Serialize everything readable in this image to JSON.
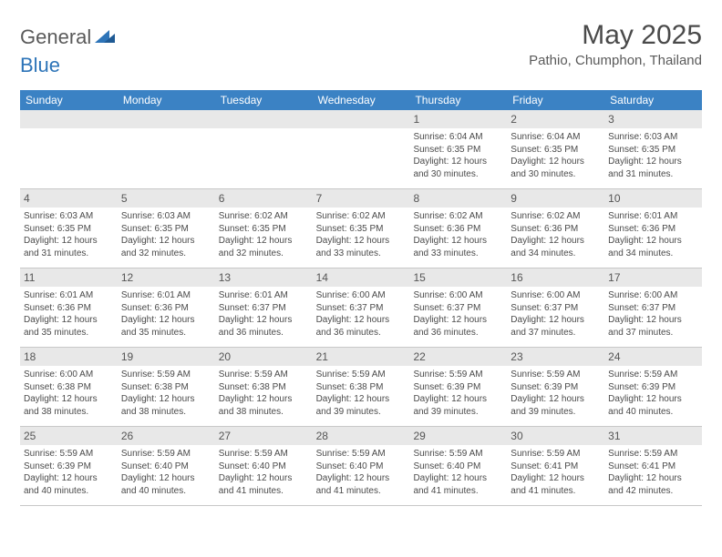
{
  "logo": {
    "part1": "General",
    "part2": "Blue"
  },
  "title": "May 2025",
  "location": "Pathio, Chumphon, Thailand",
  "colors": {
    "header_bg": "#3b82c4",
    "header_text": "#ffffff",
    "daynum_bg": "#e8e8e8",
    "border": "#c8c8c8",
    "text": "#4a4a4a",
    "logo_gray": "#5a5a5a",
    "logo_blue": "#2d74b8"
  },
  "day_headers": [
    "Sunday",
    "Monday",
    "Tuesday",
    "Wednesday",
    "Thursday",
    "Friday",
    "Saturday"
  ],
  "weeks": [
    [
      {
        "n": "",
        "sr": "",
        "ss": "",
        "dl": ""
      },
      {
        "n": "",
        "sr": "",
        "ss": "",
        "dl": ""
      },
      {
        "n": "",
        "sr": "",
        "ss": "",
        "dl": ""
      },
      {
        "n": "",
        "sr": "",
        "ss": "",
        "dl": ""
      },
      {
        "n": "1",
        "sr": "Sunrise: 6:04 AM",
        "ss": "Sunset: 6:35 PM",
        "dl": "Daylight: 12 hours and 30 minutes."
      },
      {
        "n": "2",
        "sr": "Sunrise: 6:04 AM",
        "ss": "Sunset: 6:35 PM",
        "dl": "Daylight: 12 hours and 30 minutes."
      },
      {
        "n": "3",
        "sr": "Sunrise: 6:03 AM",
        "ss": "Sunset: 6:35 PM",
        "dl": "Daylight: 12 hours and 31 minutes."
      }
    ],
    [
      {
        "n": "4",
        "sr": "Sunrise: 6:03 AM",
        "ss": "Sunset: 6:35 PM",
        "dl": "Daylight: 12 hours and 31 minutes."
      },
      {
        "n": "5",
        "sr": "Sunrise: 6:03 AM",
        "ss": "Sunset: 6:35 PM",
        "dl": "Daylight: 12 hours and 32 minutes."
      },
      {
        "n": "6",
        "sr": "Sunrise: 6:02 AM",
        "ss": "Sunset: 6:35 PM",
        "dl": "Daylight: 12 hours and 32 minutes."
      },
      {
        "n": "7",
        "sr": "Sunrise: 6:02 AM",
        "ss": "Sunset: 6:35 PM",
        "dl": "Daylight: 12 hours and 33 minutes."
      },
      {
        "n": "8",
        "sr": "Sunrise: 6:02 AM",
        "ss": "Sunset: 6:36 PM",
        "dl": "Daylight: 12 hours and 33 minutes."
      },
      {
        "n": "9",
        "sr": "Sunrise: 6:02 AM",
        "ss": "Sunset: 6:36 PM",
        "dl": "Daylight: 12 hours and 34 minutes."
      },
      {
        "n": "10",
        "sr": "Sunrise: 6:01 AM",
        "ss": "Sunset: 6:36 PM",
        "dl": "Daylight: 12 hours and 34 minutes."
      }
    ],
    [
      {
        "n": "11",
        "sr": "Sunrise: 6:01 AM",
        "ss": "Sunset: 6:36 PM",
        "dl": "Daylight: 12 hours and 35 minutes."
      },
      {
        "n": "12",
        "sr": "Sunrise: 6:01 AM",
        "ss": "Sunset: 6:36 PM",
        "dl": "Daylight: 12 hours and 35 minutes."
      },
      {
        "n": "13",
        "sr": "Sunrise: 6:01 AM",
        "ss": "Sunset: 6:37 PM",
        "dl": "Daylight: 12 hours and 36 minutes."
      },
      {
        "n": "14",
        "sr": "Sunrise: 6:00 AM",
        "ss": "Sunset: 6:37 PM",
        "dl": "Daylight: 12 hours and 36 minutes."
      },
      {
        "n": "15",
        "sr": "Sunrise: 6:00 AM",
        "ss": "Sunset: 6:37 PM",
        "dl": "Daylight: 12 hours and 36 minutes."
      },
      {
        "n": "16",
        "sr": "Sunrise: 6:00 AM",
        "ss": "Sunset: 6:37 PM",
        "dl": "Daylight: 12 hours and 37 minutes."
      },
      {
        "n": "17",
        "sr": "Sunrise: 6:00 AM",
        "ss": "Sunset: 6:37 PM",
        "dl": "Daylight: 12 hours and 37 minutes."
      }
    ],
    [
      {
        "n": "18",
        "sr": "Sunrise: 6:00 AM",
        "ss": "Sunset: 6:38 PM",
        "dl": "Daylight: 12 hours and 38 minutes."
      },
      {
        "n": "19",
        "sr": "Sunrise: 5:59 AM",
        "ss": "Sunset: 6:38 PM",
        "dl": "Daylight: 12 hours and 38 minutes."
      },
      {
        "n": "20",
        "sr": "Sunrise: 5:59 AM",
        "ss": "Sunset: 6:38 PM",
        "dl": "Daylight: 12 hours and 38 minutes."
      },
      {
        "n": "21",
        "sr": "Sunrise: 5:59 AM",
        "ss": "Sunset: 6:38 PM",
        "dl": "Daylight: 12 hours and 39 minutes."
      },
      {
        "n": "22",
        "sr": "Sunrise: 5:59 AM",
        "ss": "Sunset: 6:39 PM",
        "dl": "Daylight: 12 hours and 39 minutes."
      },
      {
        "n": "23",
        "sr": "Sunrise: 5:59 AM",
        "ss": "Sunset: 6:39 PM",
        "dl": "Daylight: 12 hours and 39 minutes."
      },
      {
        "n": "24",
        "sr": "Sunrise: 5:59 AM",
        "ss": "Sunset: 6:39 PM",
        "dl": "Daylight: 12 hours and 40 minutes."
      }
    ],
    [
      {
        "n": "25",
        "sr": "Sunrise: 5:59 AM",
        "ss": "Sunset: 6:39 PM",
        "dl": "Daylight: 12 hours and 40 minutes."
      },
      {
        "n": "26",
        "sr": "Sunrise: 5:59 AM",
        "ss": "Sunset: 6:40 PM",
        "dl": "Daylight: 12 hours and 40 minutes."
      },
      {
        "n": "27",
        "sr": "Sunrise: 5:59 AM",
        "ss": "Sunset: 6:40 PM",
        "dl": "Daylight: 12 hours and 41 minutes."
      },
      {
        "n": "28",
        "sr": "Sunrise: 5:59 AM",
        "ss": "Sunset: 6:40 PM",
        "dl": "Daylight: 12 hours and 41 minutes."
      },
      {
        "n": "29",
        "sr": "Sunrise: 5:59 AM",
        "ss": "Sunset: 6:40 PM",
        "dl": "Daylight: 12 hours and 41 minutes."
      },
      {
        "n": "30",
        "sr": "Sunrise: 5:59 AM",
        "ss": "Sunset: 6:41 PM",
        "dl": "Daylight: 12 hours and 41 minutes."
      },
      {
        "n": "31",
        "sr": "Sunrise: 5:59 AM",
        "ss": "Sunset: 6:41 PM",
        "dl": "Daylight: 12 hours and 42 minutes."
      }
    ]
  ]
}
